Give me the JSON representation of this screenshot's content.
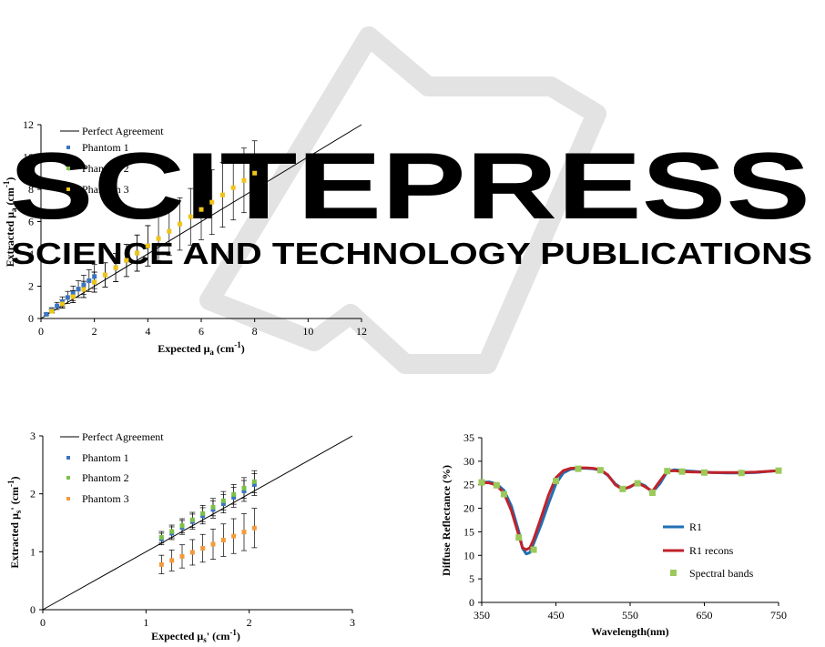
{
  "watermark": {
    "title": "SCITEPRESS",
    "subtitle": "SCIENCE AND TECHNOLOGY PUBLICATIONS",
    "color": "#d9d9d9"
  },
  "chart_data": [
    {
      "type": "scatter",
      "xlim": [
        0,
        12
      ],
      "ylim": [
        0,
        12
      ],
      "xticks": [
        0,
        2,
        4,
        6,
        8,
        10,
        12
      ],
      "yticks": [
        0,
        2,
        4,
        6,
        8,
        10,
        12
      ],
      "grid": false,
      "legend_position": "top-left",
      "perfect_agreement": {
        "name": "Perfect Agreement",
        "x": [
          0,
          12
        ],
        "y": [
          0,
          12
        ],
        "color": "#000000"
      },
      "series": [
        {
          "name": "Phantom 1",
          "color": "#3a74c4",
          "x": [
            0.2,
            0.4,
            0.6,
            0.8,
            1.0,
            1.2,
            1.4,
            1.6,
            1.8,
            2.0
          ],
          "y": [
            0.26,
            0.52,
            0.78,
            1.04,
            1.3,
            1.56,
            1.82,
            2.08,
            2.34,
            2.6
          ],
          "err": [
            0.08,
            0.15,
            0.22,
            0.3,
            0.38,
            0.45,
            0.52,
            0.6,
            0.68,
            0.75
          ]
        },
        {
          "name": "Phantom 2",
          "color": "#7cc04a",
          "x": [
            0.4,
            0.8,
            1.2,
            1.6,
            2.0,
            2.4,
            2.8,
            3.2,
            3.6,
            4.0
          ],
          "y": [
            0.45,
            0.9,
            1.35,
            1.8,
            2.25,
            2.7,
            3.15,
            3.6,
            4.05,
            4.5
          ],
          "err": [
            0.12,
            0.25,
            0.37,
            0.5,
            0.62,
            0.75,
            0.87,
            1.0,
            1.12,
            1.25
          ]
        },
        {
          "name": "Phantom 3",
          "color": "#f0c419",
          "x": [
            0.4,
            0.8,
            1.2,
            1.6,
            2.0,
            2.4,
            2.8,
            3.2,
            3.6,
            4.0,
            4.4,
            4.8,
            5.2,
            5.6,
            6.0,
            6.4,
            6.8,
            7.2,
            7.6,
            8.0
          ],
          "y": [
            0.45,
            0.9,
            1.35,
            1.8,
            2.25,
            2.7,
            3.15,
            3.6,
            4.05,
            4.5,
            4.95,
            5.4,
            5.85,
            6.3,
            6.75,
            7.2,
            7.65,
            8.1,
            8.55,
            9.0
          ],
          "err": [
            0.12,
            0.25,
            0.37,
            0.5,
            0.62,
            0.75,
            0.87,
            1.0,
            1.12,
            1.25,
            1.37,
            1.5,
            1.62,
            1.75,
            1.87,
            2.0,
            2.0,
            2.0,
            2.0,
            2.0
          ]
        }
      ],
      "error_bar_color": "#000000"
    },
    {
      "type": "scatter",
      "xlim": [
        0,
        3
      ],
      "ylim": [
        0,
        3
      ],
      "xticks": [
        0,
        1,
        2,
        3
      ],
      "yticks": [
        0,
        1,
        2,
        3
      ],
      "grid": false,
      "legend_position": "top-left",
      "perfect_agreement": {
        "name": "Perfect Agreement",
        "x": [
          0,
          3
        ],
        "y": [
          0,
          3
        ],
        "color": "#000000"
      },
      "series": [
        {
          "name": "Phantom 1",
          "color": "#3a74c4",
          "x": [
            1.15,
            1.25,
            1.35,
            1.45,
            1.55,
            1.65,
            1.75,
            1.85,
            1.95,
            2.05
          ],
          "y": [
            1.22,
            1.32,
            1.42,
            1.52,
            1.62,
            1.73,
            1.83,
            1.94,
            2.05,
            2.16
          ],
          "err": [
            0.1,
            0.11,
            0.12,
            0.13,
            0.14,
            0.15,
            0.16,
            0.17,
            0.18,
            0.19
          ]
        },
        {
          "name": "Phantom 2",
          "color": "#7cc04a",
          "x": [
            1.15,
            1.25,
            1.35,
            1.45,
            1.55,
            1.65,
            1.75,
            1.85,
            1.95,
            2.05
          ],
          "y": [
            1.25,
            1.35,
            1.45,
            1.55,
            1.66,
            1.77,
            1.88,
            1.99,
            2.1,
            2.21
          ],
          "err": [
            0.1,
            0.11,
            0.12,
            0.13,
            0.14,
            0.15,
            0.16,
            0.17,
            0.18,
            0.19
          ]
        },
        {
          "name": "Phantom 3",
          "color": "#f39a3c",
          "x": [
            1.15,
            1.25,
            1.35,
            1.45,
            1.55,
            1.65,
            1.75,
            1.85,
            1.95,
            2.05
          ],
          "y": [
            0.78,
            0.85,
            0.92,
            0.99,
            1.06,
            1.13,
            1.2,
            1.27,
            1.34,
            1.41
          ],
          "err": [
            0.16,
            0.18,
            0.2,
            0.22,
            0.24,
            0.26,
            0.28,
            0.3,
            0.32,
            0.34
          ]
        }
      ],
      "error_bar_color": "#000000"
    },
    {
      "type": "line",
      "xlabel": "Wavelength(nm)",
      "ylabel": "Diffuse Reflectance (%)",
      "xlim": [
        350,
        750
      ],
      "ylim": [
        0,
        35
      ],
      "xticks": [
        350,
        450,
        550,
        650,
        750
      ],
      "yticks": [
        0,
        5,
        10,
        15,
        20,
        25,
        30,
        35
      ],
      "grid": false,
      "legend_position": "bottom-right",
      "series": [
        {
          "name": "R1",
          "color": "#1f6fb4",
          "x": [
            350,
            360,
            370,
            380,
            390,
            400,
            405,
            410,
            415,
            420,
            430,
            440,
            450,
            460,
            470,
            480,
            490,
            500,
            510,
            520,
            530,
            540,
            550,
            560,
            570,
            580,
            590,
            600,
            610,
            620,
            640,
            660,
            680,
            700,
            720,
            740,
            750
          ],
          "y": [
            25.5,
            25.6,
            25.2,
            23.8,
            20.5,
            15.0,
            11.5,
            10.3,
            10.6,
            12.5,
            16.5,
            21.0,
            25.2,
            27.5,
            28.3,
            28.5,
            28.5,
            28.4,
            28.1,
            27.0,
            25.2,
            24.1,
            24.5,
            25.5,
            24.8,
            23.4,
            25.2,
            27.8,
            28.2,
            28.0,
            27.8,
            27.6,
            27.5,
            27.5,
            27.6,
            27.9,
            28.0
          ]
        },
        {
          "name": "R1 recons",
          "color": "#c0222a",
          "x": [
            350,
            360,
            370,
            380,
            390,
            400,
            405,
            410,
            415,
            420,
            430,
            440,
            450,
            460,
            470,
            480,
            490,
            500,
            510,
            520,
            530,
            540,
            550,
            560,
            570,
            580,
            590,
            600,
            610,
            620,
            640,
            660,
            680,
            700,
            720,
            740,
            750
          ],
          "y": [
            25.5,
            25.4,
            24.9,
            23.2,
            19.5,
            14.2,
            11.6,
            11.2,
            11.6,
            13.4,
            18.0,
            22.8,
            26.5,
            28.0,
            28.5,
            28.6,
            28.6,
            28.5,
            28.2,
            27.1,
            25.0,
            24.0,
            24.6,
            25.4,
            24.6,
            23.6,
            25.8,
            27.9,
            28.0,
            27.8,
            27.7,
            27.6,
            27.6,
            27.6,
            27.7,
            27.9,
            28.0
          ]
        },
        {
          "name": "Spectral bands",
          "color": "#9bc95a",
          "marker": "square",
          "x": [
            350,
            370,
            380,
            400,
            420,
            450,
            480,
            510,
            540,
            560,
            580,
            600,
            620,
            650,
            700,
            750
          ],
          "y": [
            25.5,
            24.9,
            23.0,
            13.8,
            11.2,
            25.8,
            28.4,
            28.1,
            24.1,
            25.3,
            23.3,
            27.9,
            27.8,
            27.6,
            27.5,
            28.0
          ]
        }
      ]
    }
  ]
}
